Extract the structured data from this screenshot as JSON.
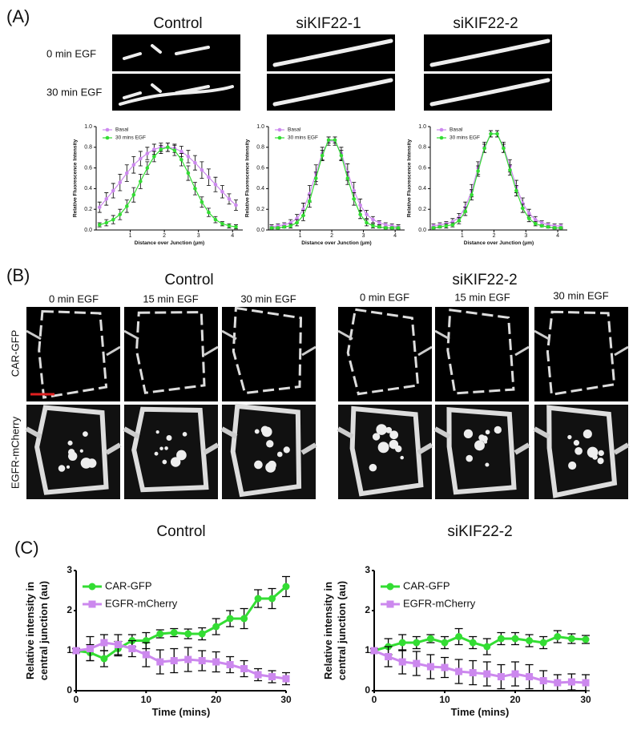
{
  "figure": {
    "panel_a": {
      "label": "(A)",
      "columns": [
        "Control",
        "siKIF22-1",
        "siKIF22-2"
      ],
      "rows": [
        "0 min EGF",
        "30 min EGF"
      ]
    },
    "panel_b": {
      "label": "(B)",
      "groups": [
        "Control",
        "siKIF22-2"
      ],
      "times": [
        "0 min EGF",
        "15 min EGF",
        "30 min EGF"
      ],
      "channels": [
        "CAR-GFP",
        "EGFR-mCherry"
      ]
    },
    "panel_c": {
      "label": "(C)"
    }
  },
  "chart_data": [
    {
      "type": "line",
      "xlabel": "Distance over Junction (μm)",
      "ylabel": [
        "Relative Fluorescence Intensity"
      ],
      "x": [
        0.1,
        0.3,
        0.5,
        0.7,
        0.9,
        1.1,
        1.3,
        1.5,
        1.7,
        1.9,
        2.1,
        2.3,
        2.5,
        2.7,
        2.9,
        3.1,
        3.3,
        3.5,
        3.7,
        3.9,
        4.1
      ],
      "xlim": [
        0,
        4.3
      ],
      "xticks": [
        1,
        2,
        3,
        4
      ],
      "ylim": [
        0,
        1.0
      ],
      "yticks": [
        {
          "value": 0,
          "label": "0.0"
        },
        {
          "value": 0.2,
          "label": "0.2"
        },
        {
          "value": 0.4,
          "label": "0.4"
        },
        {
          "value": 0.6,
          "label": "0.6"
        },
        {
          "value": 0.8,
          "label": "0.8"
        },
        {
          "value": 1.0,
          "label": "1.0"
        }
      ],
      "series": [
        {
          "name": "Basal",
          "color": "#cc88ee",
          "marker": "circle",
          "values": [
            0.22,
            0.3,
            0.38,
            0.46,
            0.55,
            0.63,
            0.69,
            0.74,
            0.78,
            0.8,
            0.8,
            0.79,
            0.76,
            0.71,
            0.65,
            0.58,
            0.51,
            0.44,
            0.37,
            0.3,
            0.24
          ],
          "errors": [
            0.05,
            0.06,
            0.07,
            0.08,
            0.08,
            0.08,
            0.07,
            0.06,
            0.05,
            0.04,
            0.04,
            0.04,
            0.05,
            0.06,
            0.07,
            0.08,
            0.08,
            0.07,
            0.06,
            0.05,
            0.05
          ]
        },
        {
          "name": "30 mins EGF",
          "color": "#33dd33",
          "marker": "circle",
          "values": [
            0.05,
            0.07,
            0.1,
            0.15,
            0.23,
            0.34,
            0.47,
            0.6,
            0.71,
            0.78,
            0.8,
            0.77,
            0.68,
            0.55,
            0.4,
            0.27,
            0.17,
            0.1,
            0.06,
            0.04,
            0.03
          ],
          "errors": [
            0.02,
            0.03,
            0.04,
            0.05,
            0.06,
            0.07,
            0.07,
            0.06,
            0.05,
            0.04,
            0.04,
            0.05,
            0.06,
            0.07,
            0.06,
            0.05,
            0.04,
            0.03,
            0.02,
            0.02,
            0.02
          ]
        }
      ]
    },
    {
      "type": "line",
      "xlabel": "Distance over Junction (μm)",
      "ylabel": [
        "Relative Fluorescence Intensity"
      ],
      "x": [
        0.1,
        0.3,
        0.5,
        0.7,
        0.9,
        1.1,
        1.3,
        1.5,
        1.7,
        1.9,
        2.1,
        2.3,
        2.5,
        2.7,
        2.9,
        3.1,
        3.3,
        3.5,
        3.7,
        3.9,
        4.1
      ],
      "xlim": [
        0,
        4.3
      ],
      "xticks": [
        1,
        2,
        3,
        4
      ],
      "ylim": [
        0,
        1.0
      ],
      "yticks": [
        {
          "value": 0,
          "label": "0.0"
        },
        {
          "value": 0.2,
          "label": "0.2"
        },
        {
          "value": 0.4,
          "label": "0.4"
        },
        {
          "value": 0.6,
          "label": "0.6"
        },
        {
          "value": 0.8,
          "label": "0.8"
        },
        {
          "value": 1.0,
          "label": "1.0"
        }
      ],
      "series": [
        {
          "name": "Basal",
          "color": "#cc88ee",
          "marker": "circle",
          "values": [
            0.03,
            0.04,
            0.05,
            0.07,
            0.11,
            0.2,
            0.35,
            0.55,
            0.74,
            0.86,
            0.86,
            0.74,
            0.56,
            0.38,
            0.24,
            0.15,
            0.1,
            0.07,
            0.05,
            0.04,
            0.03
          ],
          "errors": [
            0.02,
            0.02,
            0.02,
            0.03,
            0.04,
            0.06,
            0.08,
            0.08,
            0.06,
            0.04,
            0.04,
            0.06,
            0.08,
            0.08,
            0.06,
            0.04,
            0.03,
            0.02,
            0.02,
            0.02,
            0.02
          ]
        },
        {
          "name": "30 mins EGF",
          "color": "#33dd33",
          "marker": "circle",
          "values": [
            0.02,
            0.02,
            0.03,
            0.04,
            0.07,
            0.14,
            0.28,
            0.5,
            0.72,
            0.87,
            0.87,
            0.72,
            0.5,
            0.3,
            0.15,
            0.07,
            0.04,
            0.03,
            0.02,
            0.02,
            0.02
          ],
          "errors": [
            0.01,
            0.01,
            0.01,
            0.02,
            0.03,
            0.05,
            0.06,
            0.06,
            0.05,
            0.03,
            0.03,
            0.05,
            0.06,
            0.06,
            0.04,
            0.03,
            0.02,
            0.01,
            0.01,
            0.01,
            0.01
          ]
        }
      ]
    },
    {
      "type": "line",
      "xlabel": "Distance over Junction (μm)",
      "ylabel": [
        "Relative Fluorescence Intensity"
      ],
      "x": [
        0.1,
        0.3,
        0.5,
        0.7,
        0.9,
        1.1,
        1.3,
        1.5,
        1.7,
        1.9,
        2.1,
        2.3,
        2.5,
        2.7,
        2.9,
        3.1,
        3.3,
        3.5,
        3.7,
        3.9,
        4.1
      ],
      "xlim": [
        0,
        4.3
      ],
      "xticks": [
        1,
        2,
        3,
        4
      ],
      "ylim": [
        0,
        1.0
      ],
      "yticks": [
        {
          "value": 0,
          "label": "0.0"
        },
        {
          "value": 0.2,
          "label": "0.2"
        },
        {
          "value": 0.4,
          "label": "0.4"
        },
        {
          "value": 0.6,
          "label": "0.6"
        },
        {
          "value": 0.8,
          "label": "0.8"
        },
        {
          "value": 1.0,
          "label": "1.0"
        }
      ],
      "series": [
        {
          "name": "Basal",
          "color": "#cc88ee",
          "marker": "circle",
          "values": [
            0.04,
            0.05,
            0.06,
            0.08,
            0.12,
            0.22,
            0.38,
            0.6,
            0.8,
            0.93,
            0.93,
            0.8,
            0.62,
            0.42,
            0.26,
            0.16,
            0.1,
            0.07,
            0.05,
            0.04,
            0.04
          ],
          "errors": [
            0.02,
            0.02,
            0.02,
            0.03,
            0.04,
            0.05,
            0.06,
            0.06,
            0.05,
            0.03,
            0.03,
            0.05,
            0.06,
            0.06,
            0.05,
            0.04,
            0.03,
            0.02,
            0.02,
            0.02,
            0.02
          ]
        },
        {
          "name": "30 mins EGF",
          "color": "#33dd33",
          "marker": "circle",
          "values": [
            0.02,
            0.03,
            0.04,
            0.05,
            0.09,
            0.18,
            0.34,
            0.57,
            0.79,
            0.93,
            0.93,
            0.79,
            0.58,
            0.38,
            0.21,
            0.11,
            0.06,
            0.04,
            0.03,
            0.02,
            0.02
          ],
          "errors": [
            0.01,
            0.01,
            0.02,
            0.02,
            0.03,
            0.04,
            0.05,
            0.05,
            0.04,
            0.03,
            0.03,
            0.04,
            0.05,
            0.05,
            0.04,
            0.03,
            0.02,
            0.01,
            0.01,
            0.01,
            0.01
          ]
        }
      ]
    },
    {
      "type": "line",
      "title": "Control",
      "xlabel": "Time (mins)",
      "ylabel": [
        "Relative intensity in",
        "central junction (au)"
      ],
      "x": [
        0,
        2,
        4,
        6,
        8,
        10,
        12,
        14,
        16,
        18,
        20,
        22,
        24,
        26,
        28,
        30
      ],
      "xlim": [
        0,
        30
      ],
      "xticks": [
        0,
        10,
        20,
        30
      ],
      "ylim": [
        0,
        3
      ],
      "yticks": [
        0,
        1,
        2,
        3
      ],
      "series": [
        {
          "name": "CAR-GFP",
          "color": "#33dd33",
          "marker": "circle",
          "values": [
            1,
            0.95,
            0.8,
            1.05,
            1.25,
            1.25,
            1.42,
            1.45,
            1.42,
            1.42,
            1.6,
            1.8,
            1.8,
            2.3,
            2.3,
            2.6
          ],
          "errors": [
            0.05,
            0.2,
            0.2,
            0.18,
            0.15,
            0.2,
            0.1,
            0.1,
            0.12,
            0.15,
            0.2,
            0.2,
            0.25,
            0.22,
            0.25,
            0.25
          ]
        },
        {
          "name": "EGFR-mCherry",
          "color": "#cc88ee",
          "marker": "square",
          "values": [
            1,
            1.05,
            1.2,
            1.15,
            1.05,
            0.9,
            0.72,
            0.75,
            0.78,
            0.75,
            0.72,
            0.65,
            0.55,
            0.4,
            0.35,
            0.3
          ],
          "errors": [
            0.05,
            0.3,
            0.2,
            0.25,
            0.2,
            0.3,
            0.3,
            0.3,
            0.3,
            0.25,
            0.25,
            0.2,
            0.2,
            0.15,
            0.15,
            0.15
          ]
        }
      ]
    },
    {
      "type": "line",
      "title": "siKIF22-2",
      "xlabel": "Time (mins)",
      "ylabel": [
        "Relative intensity in",
        "central junction (au)"
      ],
      "x": [
        0,
        2,
        4,
        6,
        8,
        10,
        12,
        14,
        16,
        18,
        20,
        22,
        24,
        26,
        28,
        30
      ],
      "xlim": [
        0,
        30
      ],
      "xticks": [
        0,
        10,
        20,
        30
      ],
      "ylim": [
        0,
        3
      ],
      "yticks": [
        0,
        1,
        2,
        3
      ],
      "series": [
        {
          "name": "CAR-GFP",
          "color": "#33dd33",
          "marker": "circle",
          "values": [
            1,
            1.1,
            1.2,
            1.2,
            1.3,
            1.2,
            1.35,
            1.2,
            1.1,
            1.3,
            1.3,
            1.25,
            1.2,
            1.35,
            1.3,
            1.28
          ],
          "errors": [
            0.05,
            0.2,
            0.2,
            0.15,
            0.1,
            0.15,
            0.2,
            0.15,
            0.2,
            0.15,
            0.15,
            0.15,
            0.15,
            0.15,
            0.12,
            0.1
          ]
        },
        {
          "name": "EGFR-mCherry",
          "color": "#cc88ee",
          "marker": "square",
          "values": [
            1,
            0.85,
            0.72,
            0.68,
            0.6,
            0.58,
            0.48,
            0.45,
            0.42,
            0.35,
            0.42,
            0.35,
            0.25,
            0.2,
            0.22,
            0.2
          ],
          "errors": [
            0.05,
            0.25,
            0.3,
            0.3,
            0.3,
            0.25,
            0.3,
            0.3,
            0.3,
            0.3,
            0.3,
            0.3,
            0.25,
            0.2,
            0.2,
            0.2
          ]
        }
      ]
    }
  ]
}
